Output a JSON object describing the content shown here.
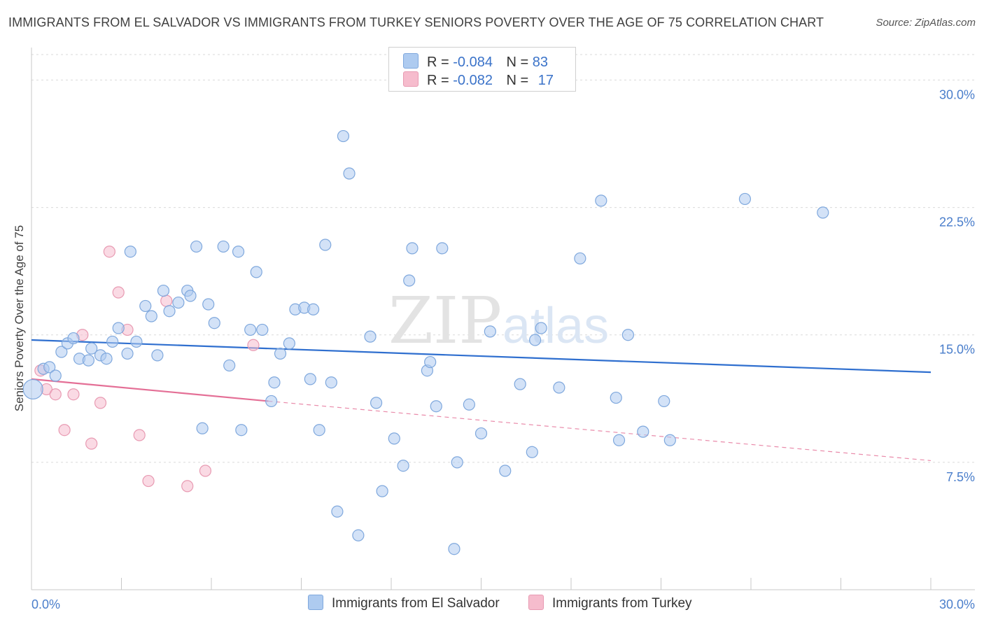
{
  "title": "IMMIGRANTS FROM EL SALVADOR VS IMMIGRANTS FROM TURKEY SENIORS POVERTY OVER THE AGE OF 75 CORRELATION CHART",
  "source": "Source: ZipAtlas.com",
  "watermark": {
    "zip": "ZIP",
    "atlas": "atlas"
  },
  "legend": {
    "rows": [
      {
        "r_label": "R =",
        "r_value": "-0.084",
        "n_label": "N =",
        "n_value": "83",
        "color": "#aecbf0"
      },
      {
        "r_label": "R =",
        "r_value": "-0.082",
        "n_label": "N =",
        "n_value": "17",
        "color": "#f6bccd"
      }
    ]
  },
  "bottom_legend": {
    "series1": {
      "label": "Immigrants from El Salvador",
      "color": "#aecbf0"
    },
    "series2": {
      "label": "Immigrants from Turkey",
      "color": "#f6bccd"
    }
  },
  "chart_data": {
    "type": "scatter",
    "ylabel": "Seniors Poverty Over the Age of 75",
    "xlim": [
      0,
      30
    ],
    "ylim": [
      0,
      31.5
    ],
    "x_tick_labels": [
      "0.0%",
      "30.0%"
    ],
    "y_ticks": [
      {
        "value": 30,
        "label": "30.0%"
      },
      {
        "value": 22.5,
        "label": "22.5%"
      },
      {
        "value": 15,
        "label": "15.0%"
      },
      {
        "value": 7.5,
        "label": "7.5%"
      }
    ],
    "grid": "horizontal dashed",
    "series": [
      {
        "name": "Immigrants from El Salvador",
        "color": "#aecbf0",
        "stroke": "#7fa8dd",
        "trend": {
          "x": [
            0,
            30
          ],
          "y": [
            14.7,
            12.8
          ],
          "color": "#2f6fcf"
        },
        "points": [
          [
            0.05,
            11.8
          ],
          [
            0.4,
            13.0
          ],
          [
            0.6,
            13.1
          ],
          [
            0.8,
            12.6
          ],
          [
            1.0,
            14.0
          ],
          [
            1.2,
            14.5
          ],
          [
            1.4,
            14.8
          ],
          [
            1.6,
            13.6
          ],
          [
            1.9,
            13.5
          ],
          [
            2.0,
            14.2
          ],
          [
            2.3,
            13.8
          ],
          [
            2.5,
            13.6
          ],
          [
            2.7,
            14.6
          ],
          [
            2.9,
            15.4
          ],
          [
            3.2,
            13.9
          ],
          [
            3.3,
            19.9
          ],
          [
            3.5,
            14.6
          ],
          [
            3.8,
            16.7
          ],
          [
            4.0,
            16.1
          ],
          [
            4.2,
            13.8
          ],
          [
            4.4,
            17.6
          ],
          [
            4.6,
            16.4
          ],
          [
            4.9,
            16.9
          ],
          [
            5.2,
            17.6
          ],
          [
            5.3,
            17.3
          ],
          [
            5.5,
            20.2
          ],
          [
            5.7,
            9.5
          ],
          [
            5.9,
            16.8
          ],
          [
            6.1,
            15.7
          ],
          [
            6.4,
            20.2
          ],
          [
            6.6,
            13.2
          ],
          [
            6.9,
            19.9
          ],
          [
            7.0,
            9.4
          ],
          [
            7.3,
            15.3
          ],
          [
            7.5,
            18.7
          ],
          [
            7.7,
            15.3
          ],
          [
            8.0,
            11.1
          ],
          [
            8.1,
            12.2
          ],
          [
            8.3,
            13.9
          ],
          [
            8.6,
            14.5
          ],
          [
            8.8,
            16.5
          ],
          [
            9.1,
            16.6
          ],
          [
            9.3,
            12.4
          ],
          [
            9.4,
            16.5
          ],
          [
            9.6,
            9.4
          ],
          [
            9.8,
            20.3
          ],
          [
            10.0,
            12.2
          ],
          [
            10.2,
            4.6
          ],
          [
            10.4,
            26.7
          ],
          [
            10.6,
            24.5
          ],
          [
            10.9,
            3.2
          ],
          [
            11.3,
            14.9
          ],
          [
            11.5,
            11.0
          ],
          [
            11.7,
            5.8
          ],
          [
            12.1,
            8.9
          ],
          [
            12.4,
            7.3
          ],
          [
            12.6,
            18.2
          ],
          [
            12.7,
            20.1
          ],
          [
            13.2,
            12.9
          ],
          [
            13.3,
            13.4
          ],
          [
            13.5,
            10.8
          ],
          [
            13.7,
            20.1
          ],
          [
            14.1,
            2.4
          ],
          [
            14.2,
            7.5
          ],
          [
            14.6,
            10.9
          ],
          [
            15.0,
            9.2
          ],
          [
            15.3,
            15.2
          ],
          [
            15.8,
            7.0
          ],
          [
            16.3,
            12.1
          ],
          [
            16.7,
            8.1
          ],
          [
            16.8,
            14.7
          ],
          [
            17.0,
            15.4
          ],
          [
            17.6,
            11.9
          ],
          [
            18.3,
            19.5
          ],
          [
            19.0,
            22.9
          ],
          [
            19.5,
            11.3
          ],
          [
            19.6,
            8.8
          ],
          [
            19.9,
            15.0
          ],
          [
            20.4,
            9.3
          ],
          [
            21.1,
            11.1
          ],
          [
            21.3,
            8.8
          ],
          [
            23.8,
            23.0
          ],
          [
            26.4,
            22.2
          ]
        ]
      },
      {
        "name": "Immigrants from Turkey",
        "color": "#f6bccd",
        "stroke": "#e89ab2",
        "trend": {
          "x": [
            0,
            7.9
          ],
          "y": [
            12.4,
            11.1
          ],
          "color": "#e46f96",
          "dash_to": [
            30,
            7.6
          ]
        },
        "points": [
          [
            0.3,
            12.9
          ],
          [
            0.5,
            11.8
          ],
          [
            0.8,
            11.5
          ],
          [
            1.1,
            9.4
          ],
          [
            1.4,
            11.5
          ],
          [
            1.7,
            15.0
          ],
          [
            2.0,
            8.6
          ],
          [
            2.3,
            11.0
          ],
          [
            2.6,
            19.9
          ],
          [
            2.9,
            17.5
          ],
          [
            3.2,
            15.3
          ],
          [
            3.6,
            9.1
          ],
          [
            3.9,
            6.4
          ],
          [
            4.5,
            17.0
          ],
          [
            5.2,
            6.1
          ],
          [
            5.8,
            7.0
          ],
          [
            7.4,
            14.4
          ]
        ]
      }
    ]
  }
}
